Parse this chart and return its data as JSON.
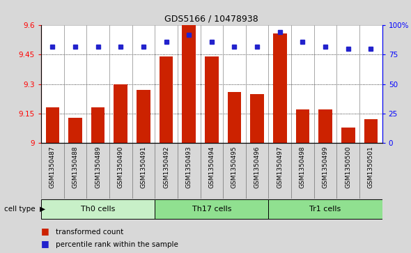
{
  "title": "GDS5166 / 10478938",
  "samples": [
    "GSM1350487",
    "GSM1350488",
    "GSM1350489",
    "GSM1350490",
    "GSM1350491",
    "GSM1350492",
    "GSM1350493",
    "GSM1350494",
    "GSM1350495",
    "GSM1350496",
    "GSM1350497",
    "GSM1350498",
    "GSM1350499",
    "GSM1350500",
    "GSM1350501"
  ],
  "transformed_counts": [
    9.18,
    9.13,
    9.18,
    9.3,
    9.27,
    9.44,
    9.6,
    9.44,
    9.26,
    9.25,
    9.56,
    9.17,
    9.17,
    9.08,
    9.12
  ],
  "percentile_ranks": [
    82,
    82,
    82,
    82,
    82,
    86,
    92,
    86,
    82,
    82,
    94,
    86,
    82,
    80,
    80
  ],
  "cell_groups": [
    {
      "label": "Th0 cells",
      "start": 0,
      "end": 4,
      "color": "#c8f0c8"
    },
    {
      "label": "Th17 cells",
      "start": 5,
      "end": 9,
      "color": "#90e090"
    },
    {
      "label": "Tr1 cells",
      "start": 10,
      "end": 14,
      "color": "#90e090"
    }
  ],
  "ymin": 9.0,
  "ymax": 9.6,
  "yticks": [
    9.0,
    9.15,
    9.3,
    9.45,
    9.6
  ],
  "ytick_labels": [
    "9",
    "9.15",
    "9.3",
    "9.45",
    "9.6"
  ],
  "right_yticks": [
    0,
    25,
    50,
    75,
    100
  ],
  "right_ytick_labels": [
    "0",
    "25",
    "50",
    "75",
    "100%"
  ],
  "bar_color": "#cc2200",
  "dot_color": "#2222cc",
  "bar_width": 0.6,
  "background_color": "#d8d8d8",
  "plot_bg_color": "#ffffff",
  "xlabel_bg_color": "#c8c8c8",
  "cell_type_label": "cell type",
  "legend_transformed": "transformed count",
  "legend_percentile": "percentile rank within the sample",
  "th0_color": "#c8f0c8",
  "th17_color": "#90e090",
  "tr1_color": "#90e090"
}
